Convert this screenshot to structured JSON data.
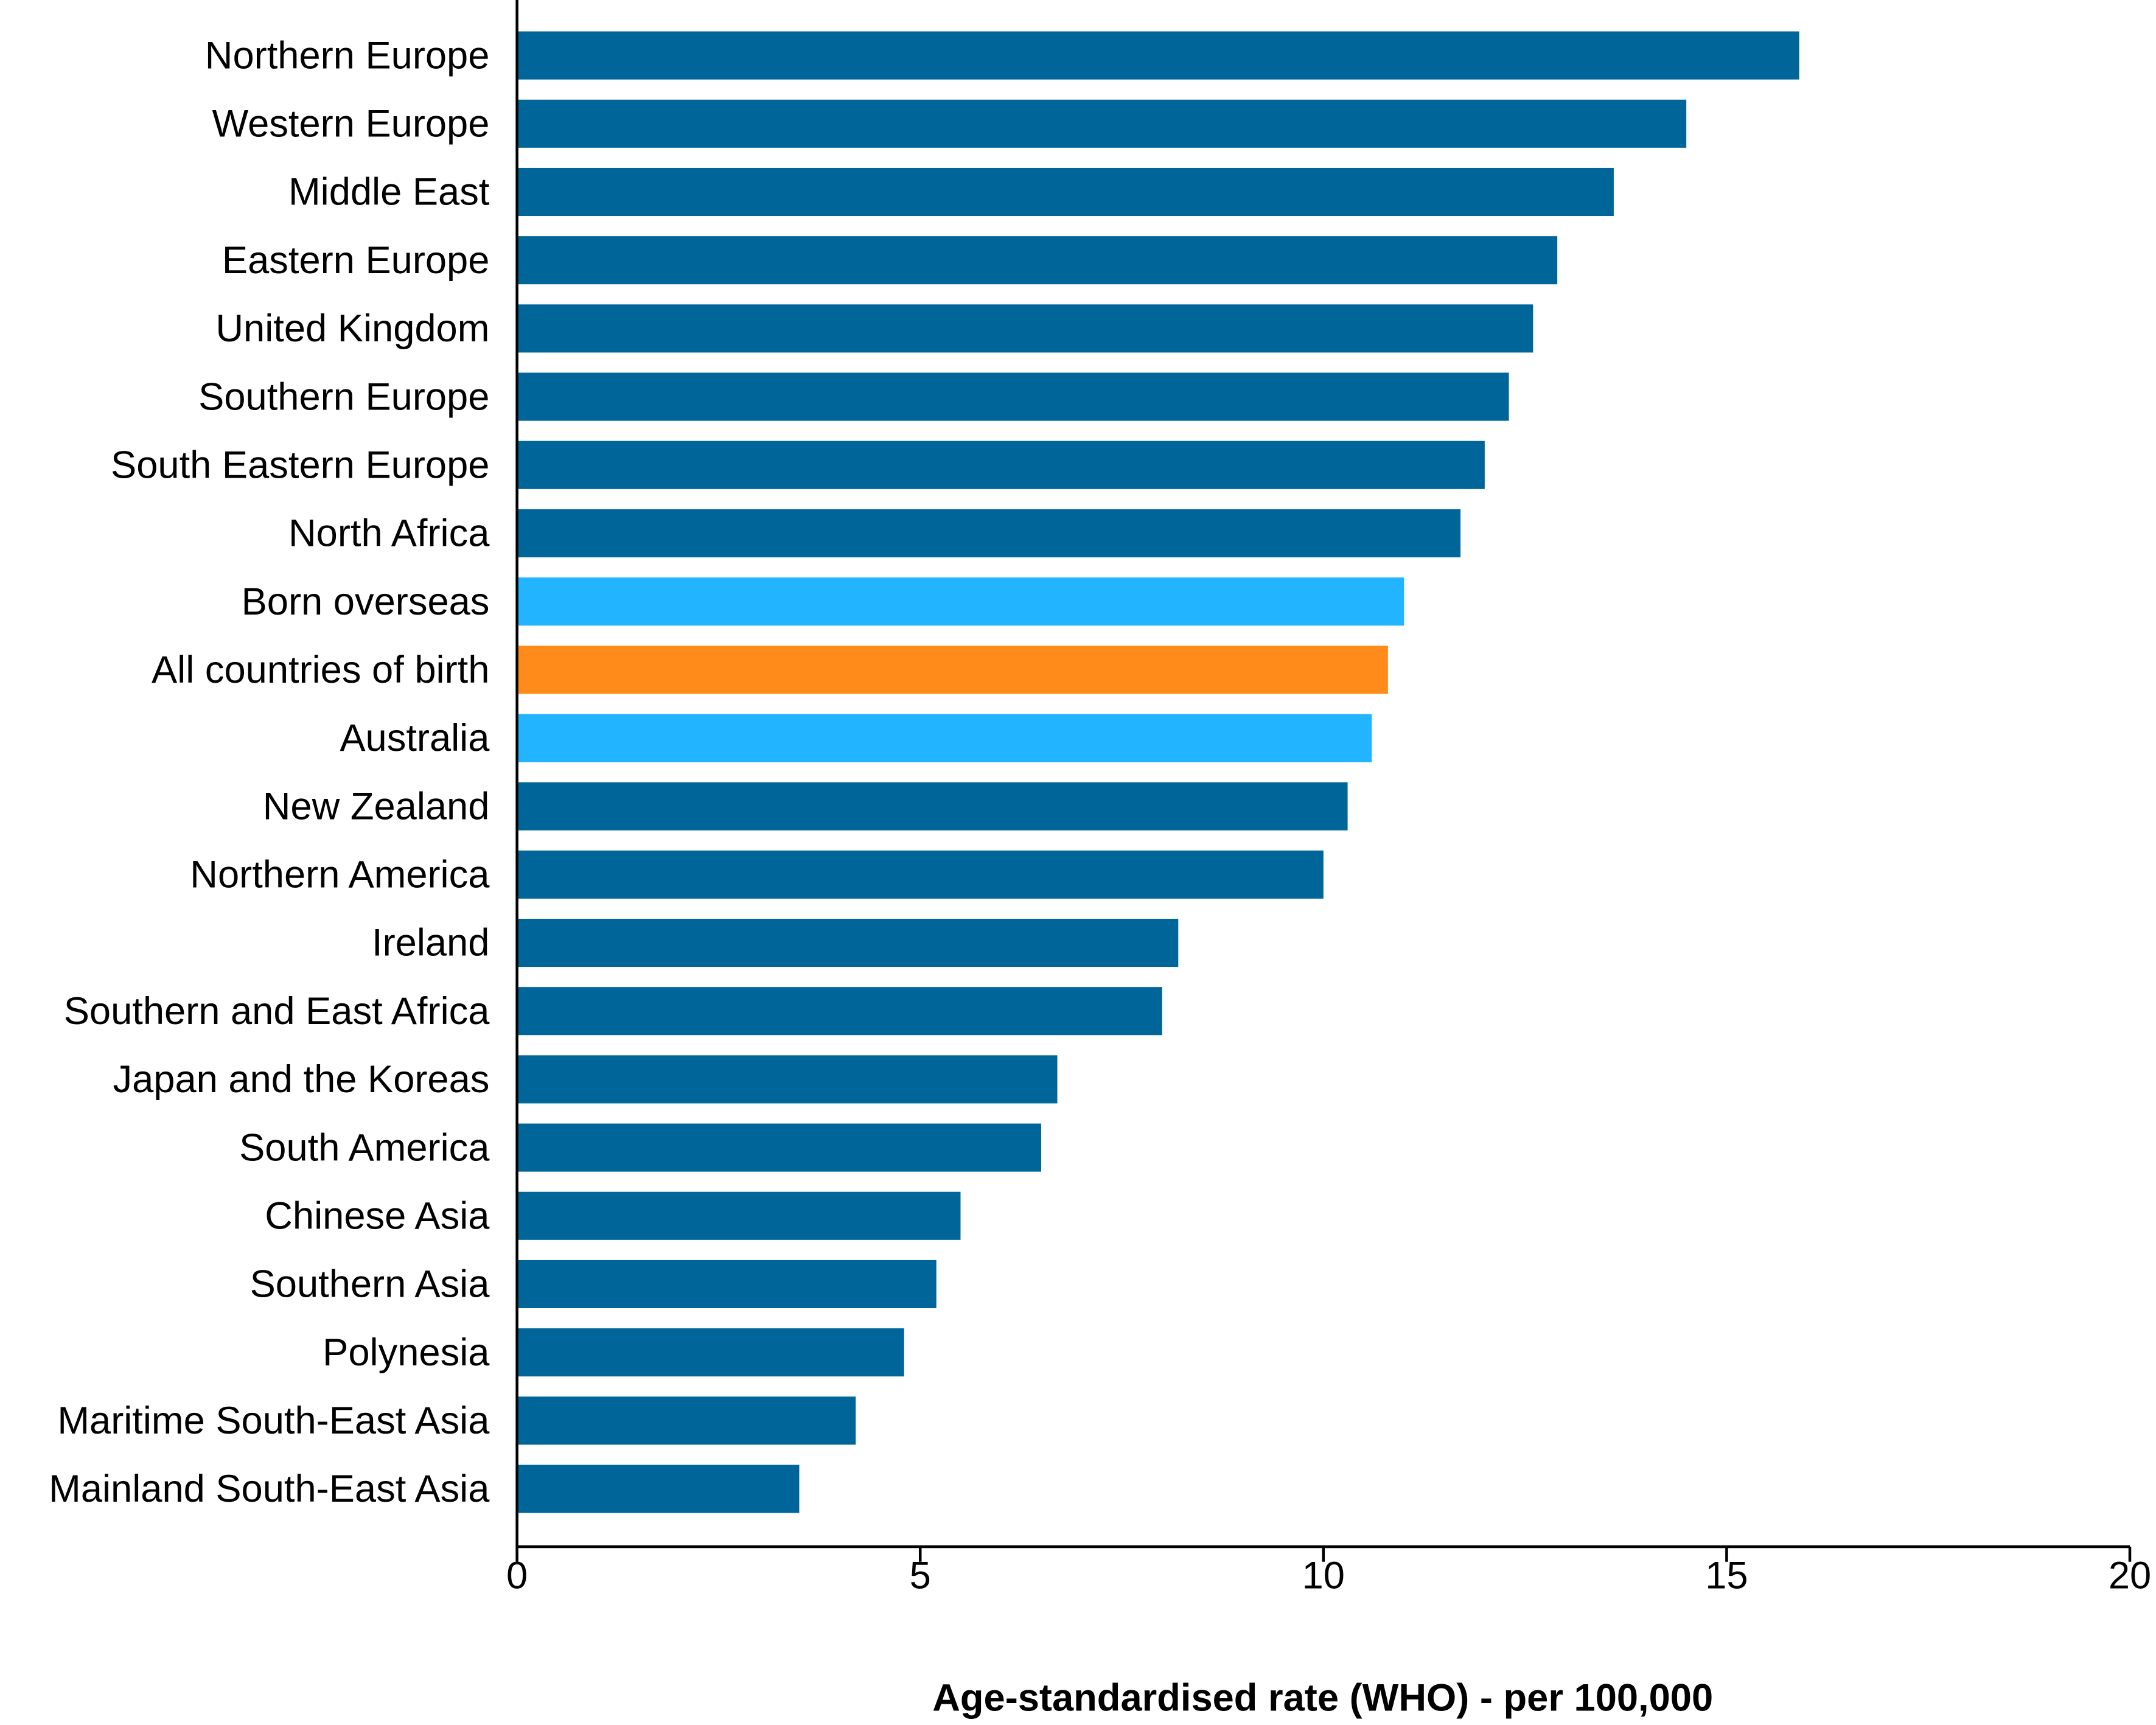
{
  "chart_data": {
    "type": "bar",
    "orientation": "horizontal",
    "x_label": "Age-standardised rate (WHO) - per 100,000",
    "categories": [
      "Northern Europe",
      "Western Europe",
      "Middle East",
      "Eastern Europe",
      "United Kingdom",
      "Southern Europe",
      "South Eastern Europe",
      "North Africa",
      "Born overseas",
      "All countries of birth",
      "Australia",
      "New Zealand",
      "Northern America",
      "Ireland",
      "Southern and East Africa",
      "Japan and the Koreas",
      "South America",
      "Chinese Asia",
      "Southern Asia",
      "Polynesia",
      "Maritime South-East Asia",
      "Mainland South-East Asia"
    ],
    "values": [
      15.9,
      14.5,
      13.6,
      12.9,
      12.6,
      12.3,
      12.0,
      11.7,
      11.0,
      10.8,
      10.6,
      10.3,
      10.0,
      8.2,
      8.0,
      6.7,
      6.5,
      5.5,
      5.2,
      4.8,
      4.2,
      3.5
    ],
    "colors": [
      "#00669a",
      "#00669a",
      "#00669a",
      "#00669a",
      "#00669a",
      "#00669a",
      "#00669a",
      "#00669a",
      "#22b4ff",
      "#ff8c1a",
      "#22b4ff",
      "#00669a",
      "#00669a",
      "#00669a",
      "#00669a",
      "#00669a",
      "#00669a",
      "#00669a",
      "#00669a",
      "#00669a",
      "#00669a",
      "#00669a"
    ],
    "xlim": [
      0,
      20
    ],
    "xticks": [
      0,
      5,
      10,
      15,
      20
    ],
    "grid": false
  }
}
